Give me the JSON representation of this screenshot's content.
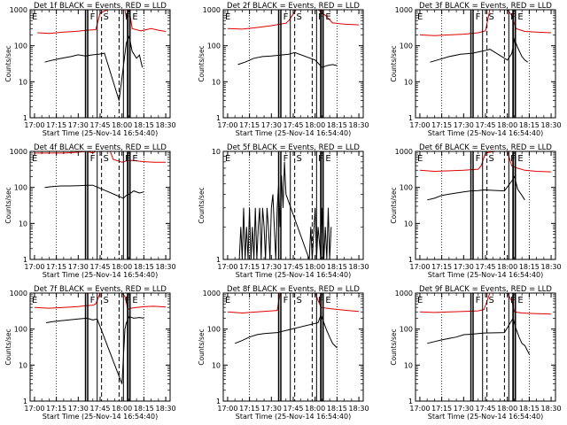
{
  "figure": {
    "start_time_label": "Start Time (25-Nov-14 16:54:40)",
    "ylabel": "Counts/sec",
    "x_ticks": [
      "17:00",
      "17:15",
      "17:30",
      "17:45",
      "18:00",
      "18:15",
      "18:30"
    ],
    "markers": [
      "F",
      "S",
      "F",
      "E"
    ],
    "colors": {
      "events": "#000000",
      "lld": "#e00000",
      "axis": "#000000",
      "background": "#ffffff"
    }
  },
  "chart_data": [
    {
      "type": "line",
      "title": "Det 1f BLACK = Events, RED = LLD",
      "ylim": [
        1,
        1000
      ],
      "y_ticks": [
        "1",
        "10",
        "100",
        "1000"
      ],
      "series": [
        {
          "name": "RED = LLD",
          "x": [
            2,
            10,
            20,
            28,
            36,
            42,
            45,
            50,
            52,
            55,
            62,
            63,
            65,
            67,
            73,
            80,
            85,
            90
          ],
          "y": [
            230,
            220,
            240,
            250,
            270,
            280,
            800,
            1000,
            1000,
            1000,
            1000,
            600,
            1000,
            300,
            260,
            300,
            270,
            250
          ]
        },
        {
          "name": "BLACK = Events",
          "x": [
            7,
            10,
            15,
            20,
            25,
            30,
            35,
            40,
            44,
            48,
            58,
            63,
            65,
            67,
            70,
            72,
            74
          ],
          "y": [
            35,
            38,
            42,
            46,
            50,
            56,
            52,
            56,
            58,
            62,
            3,
            120,
            180,
            70,
            45,
            55,
            25
          ]
        }
      ]
    },
    {
      "type": "line",
      "title": "Det 2f BLACK = Events, RED = LLD",
      "ylim": [
        1,
        1000
      ],
      "y_ticks": [
        "1",
        "10",
        "100",
        "1000"
      ],
      "series": [
        {
          "name": "RED = LLD",
          "x": [
            0,
            10,
            20,
            30,
            36,
            40,
            42,
            47,
            52,
            55,
            62,
            67,
            72,
            80,
            90
          ],
          "y": [
            300,
            290,
            320,
            360,
            400,
            420,
            500,
            1000,
            1000,
            1000,
            1000,
            700,
            430,
            400,
            380
          ]
        },
        {
          "name": "BLACK = Events",
          "x": [
            7,
            12,
            18,
            24,
            30,
            36,
            42,
            46,
            60,
            63,
            65,
            68,
            72,
            75
          ],
          "y": [
            30,
            35,
            45,
            50,
            52,
            55,
            58,
            65,
            40,
            30,
            25,
            28,
            30,
            28
          ]
        }
      ]
    },
    {
      "type": "line",
      "title": "Det 3f BLACK = Events, RED = LLD",
      "ylim": [
        1,
        1000
      ],
      "y_ticks": [
        "1",
        "10",
        "100",
        "1000"
      ],
      "series": [
        {
          "name": "RED = LLD",
          "x": [
            0,
            10,
            20,
            30,
            40,
            45,
            48,
            55,
            60,
            63,
            66,
            72,
            80,
            90
          ],
          "y": [
            200,
            190,
            200,
            210,
            230,
            260,
            1000,
            1000,
            1000,
            700,
            300,
            250,
            240,
            230
          ]
        },
        {
          "name": "BLACK = Events",
          "x": [
            7,
            12,
            20,
            28,
            36,
            42,
            46,
            48,
            60,
            63,
            65,
            67,
            70,
            72,
            74
          ],
          "y": [
            35,
            40,
            50,
            58,
            62,
            70,
            75,
            80,
            40,
            60,
            150,
            90,
            50,
            40,
            35
          ]
        }
      ]
    },
    {
      "type": "line",
      "title": "Det 4f BLACK = Events, RED = LLD",
      "ylim": [
        1,
        1000
      ],
      "y_ticks": [
        "1",
        "10",
        "100",
        "1000"
      ],
      "series": [
        {
          "name": "RED = LLD",
          "x": [
            0,
            10,
            20,
            30,
            36,
            40,
            42,
            46,
            48,
            52,
            54,
            60,
            64,
            68,
            74,
            82,
            90
          ],
          "y": [
            900,
            900,
            900,
            950,
            1000,
            900,
            1000,
            1000,
            1000,
            1000,
            600,
            500,
            560,
            560,
            520,
            500,
            500
          ]
        },
        {
          "name": "BLACK = Events",
          "x": [
            7,
            12,
            18,
            24,
            30,
            36,
            40,
            61,
            63,
            65,
            68,
            72,
            75
          ],
          "y": [
            100,
            105,
            110,
            110,
            112,
            115,
            115,
            50,
            60,
            65,
            80,
            70,
            75
          ]
        }
      ]
    },
    {
      "type": "line",
      "title": "Det 5f BLACK = Events, RED = LLD",
      "ylim": [
        1,
        10
      ],
      "y_ticks": [
        "1",
        "10"
      ],
      "series": [
        {
          "name": "BLACK = Events",
          "x": [
            8,
            9,
            10,
            11,
            12,
            13,
            14,
            15,
            16,
            17,
            18,
            19,
            20,
            21,
            22,
            23,
            24,
            25,
            26,
            27,
            28,
            29,
            30,
            31,
            32,
            33,
            34,
            35,
            36,
            37,
            38,
            39,
            40,
            56,
            57,
            58,
            60,
            61,
            62,
            64,
            65,
            66,
            67,
            68,
            69,
            70,
            71
          ],
          "y": [
            1,
            2,
            1,
            3,
            1,
            2,
            1,
            3,
            1,
            2,
            1,
            3,
            1,
            2,
            3,
            1,
            3,
            2,
            1,
            3,
            2,
            1,
            3,
            4,
            2,
            1,
            3,
            5,
            2,
            6,
            3,
            8,
            4,
            1,
            2,
            1,
            3,
            1,
            2,
            1,
            3,
            1,
            2,
            1,
            3,
            1,
            2
          ]
        }
      ]
    },
    {
      "type": "line",
      "title": "Det 6f BLACK = Events, RED = LLD",
      "ylim": [
        1,
        1000
      ],
      "y_ticks": [
        "1",
        "10",
        "100",
        "1000"
      ],
      "series": [
        {
          "name": "RED = LLD",
          "x": [
            0,
            10,
            20,
            30,
            40,
            42,
            45,
            48,
            52,
            56,
            60,
            63,
            66,
            72,
            80,
            90
          ],
          "y": [
            300,
            280,
            290,
            300,
            320,
            400,
            900,
            950,
            1000,
            1000,
            1000,
            400,
            350,
            300,
            280,
            270
          ]
        },
        {
          "name": "BLACK = Events",
          "x": [
            5,
            10,
            15,
            20,
            25,
            30,
            35,
            40,
            44,
            58,
            63,
            65,
            67,
            70,
            72
          ],
          "y": [
            45,
            50,
            60,
            65,
            70,
            75,
            80,
            82,
            85,
            80,
            150,
            200,
            90,
            60,
            45
          ]
        }
      ]
    },
    {
      "type": "line",
      "title": "Det 7f BLACK = Events, RED = LLD",
      "ylim": [
        1,
        1000
      ],
      "y_ticks": [
        "1",
        "10",
        "100",
        "1000"
      ],
      "series": [
        {
          "name": "RED = LLD",
          "x": [
            0,
            10,
            20,
            30,
            36,
            40,
            42,
            45,
            50,
            55,
            60,
            62,
            64,
            66,
            70,
            76,
            82,
            90
          ],
          "y": [
            400,
            380,
            400,
            420,
            450,
            460,
            500,
            1000,
            1000,
            1000,
            1000,
            800,
            350,
            380,
            400,
            420,
            430,
            410
          ]
        },
        {
          "name": "BLACK = Events",
          "x": [
            8,
            12,
            18,
            24,
            30,
            36,
            40,
            43,
            60,
            62,
            63,
            65,
            68,
            72,
            75
          ],
          "y": [
            150,
            160,
            170,
            180,
            190,
            200,
            180,
            190,
            3,
            100,
            150,
            220,
            200,
            210,
            200
          ]
        }
      ]
    },
    {
      "type": "line",
      "title": "Det 8f BLACK = Events, RED = LLD",
      "ylim": [
        1,
        1000
      ],
      "y_ticks": [
        "1",
        "10",
        "100",
        "1000"
      ],
      "series": [
        {
          "name": "RED = LLD",
          "x": [
            0,
            10,
            20,
            30,
            34,
            36,
            40,
            45,
            50,
            55,
            60,
            64,
            68,
            75,
            82,
            90
          ],
          "y": [
            300,
            280,
            300,
            320,
            330,
            1000,
            1000,
            1000,
            1000,
            1000,
            1000,
            400,
            380,
            350,
            330,
            310
          ]
        },
        {
          "name": "BLACK = Events",
          "x": [
            5,
            10,
            15,
            20,
            25,
            30,
            34,
            62,
            64,
            66,
            68,
            70,
            72,
            75
          ],
          "y": [
            40,
            48,
            60,
            70,
            75,
            78,
            80,
            150,
            250,
            150,
            90,
            60,
            40,
            30
          ]
        }
      ]
    },
    {
      "type": "line",
      "title": "Det 9f BLACK = Events, RED = LLD",
      "ylim": [
        1,
        1000
      ],
      "y_ticks": [
        "1",
        "10",
        "100",
        "1000"
      ],
      "series": [
        {
          "name": "RED = LLD",
          "x": [
            0,
            10,
            20,
            30,
            40,
            44,
            48,
            55,
            60,
            63,
            65,
            70,
            78,
            86,
            90
          ],
          "y": [
            300,
            290,
            300,
            310,
            320,
            350,
            1000,
            1000,
            1000,
            600,
            300,
            280,
            270,
            265,
            260
          ]
        },
        {
          "name": "BLACK = Events",
          "x": [
            5,
            10,
            15,
            20,
            25,
            30,
            35,
            40,
            44,
            58,
            62,
            64,
            66,
            68,
            70,
            72,
            75
          ],
          "y": [
            40,
            45,
            50,
            55,
            60,
            70,
            72,
            75,
            78,
            80,
            150,
            200,
            100,
            60,
            40,
            35,
            20
          ]
        }
      ]
    }
  ]
}
